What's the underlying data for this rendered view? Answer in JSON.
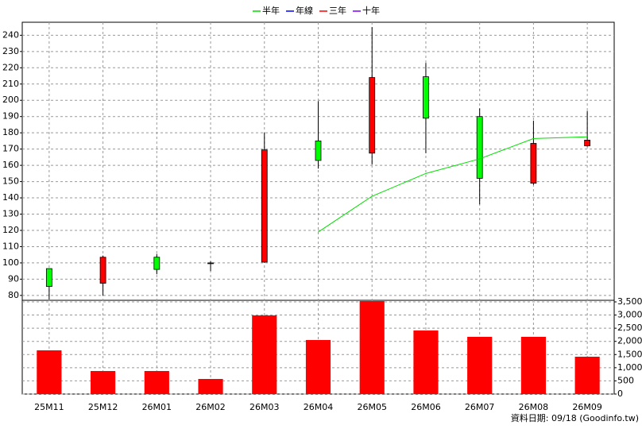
{
  "chart_data": [
    {
      "type": "candlestick",
      "categories": [
        "25M11",
        "25M12",
        "26M01",
        "26M02",
        "26M03",
        "26M04",
        "26M05",
        "26M06",
        "26M07",
        "26M08",
        "26M09"
      ],
      "open": [
        96.5,
        87.5,
        103.5,
        99.5,
        100.5,
        175,
        167.5,
        214.5,
        190,
        149,
        172
      ],
      "high": [
        96.5,
        104.5,
        105.5,
        101,
        180,
        199.5,
        245,
        223,
        195,
        187.5,
        193.5
      ],
      "low": [
        77.5,
        80,
        93,
        95,
        100,
        158,
        160.5,
        167.5,
        136,
        148,
        171.5
      ],
      "close": [
        85.5,
        103.5,
        96,
        100,
        169.5,
        163,
        214,
        189,
        152,
        173.5,
        175.5
      ],
      "up_color": "#ff0000",
      "down_color": "#00ff00",
      "flat_color": "#000000",
      "series": [
        {
          "name": "半年",
          "color": "#00dd00",
          "values": [
            null,
            null,
            null,
            null,
            null,
            119,
            141,
            155,
            164,
            176.5,
            177.5
          ]
        },
        {
          "name": "年線",
          "color": "#0000ff",
          "values": [
            null,
            null,
            null,
            null,
            null,
            null,
            null,
            null,
            null,
            null,
            null
          ]
        },
        {
          "name": "三年",
          "color": "#ff0000",
          "values": [
            null,
            null,
            null,
            null,
            null,
            null,
            null,
            null,
            null,
            null,
            null
          ]
        },
        {
          "name": "十年",
          "color": "#8000ff",
          "values": [
            null,
            null,
            null,
            null,
            null,
            null,
            null,
            null,
            null,
            null,
            null
          ]
        }
      ],
      "ylim": [
        77,
        248
      ],
      "yticks": [
        80,
        90,
        100,
        110,
        120,
        130,
        140,
        150,
        160,
        170,
        180,
        190,
        200,
        210,
        220,
        230,
        240
      ],
      "grid": true,
      "legend": "top"
    },
    {
      "type": "bar",
      "values": [
        1660,
        875,
        875,
        573,
        2987,
        2052,
        3530,
        2414,
        2172,
        2172,
        1418
      ],
      "color": "#ff0000",
      "ylim": [
        0,
        3560
      ],
      "yticks": [
        0,
        500,
        {
          "value": 1000,
          "label": "1,000"
        },
        {
          "value": 1500,
          "label": "1,500"
        },
        {
          "value": 2000,
          "label": "2,000"
        },
        {
          "value": 2500,
          "label": "2,500"
        },
        {
          "value": 3000,
          "label": "3,000"
        },
        {
          "value": 3500,
          "label": "3,500"
        }
      ],
      "grid": true,
      "footnote": "資料日期: 09/18 (Goodinfo.tw)"
    }
  ]
}
